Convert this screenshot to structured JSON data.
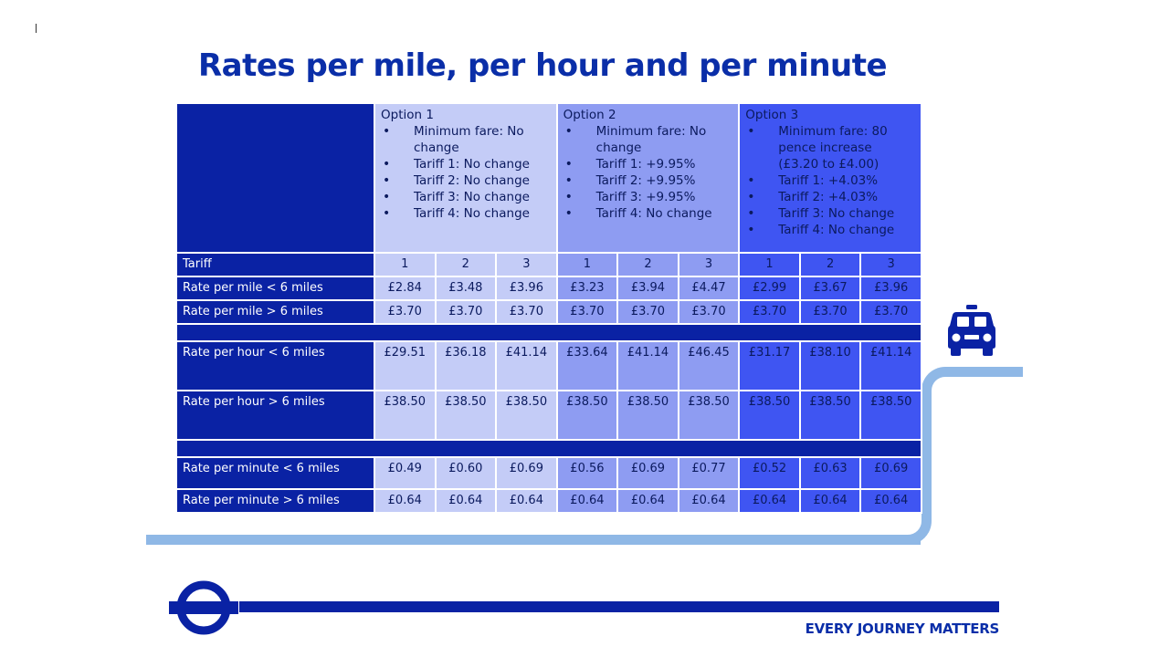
{
  "title": "Rates per mile, per hour and per minute",
  "options": [
    {
      "name": "Option 1",
      "bullets": [
        "Minimum fare: No change",
        "Tariff 1: No change",
        "Tariff 2: No change",
        "Tariff 3: No change",
        "Tariff 4: No change"
      ]
    },
    {
      "name": "Option 2",
      "bullets": [
        "Minimum fare: No change",
        "Tariff 1: +9.95%",
        "Tariff 2: +9.95%",
        "Tariff 3: +9.95%",
        "Tariff 4: No change"
      ]
    },
    {
      "name": "Option 3",
      "bullets": [
        "Minimum fare: 80 pence increase (£3.20 to £4.00)",
        "Tariff 1: +4.03%",
        "Tariff 2: +4.03%",
        "Tariff 3: No change",
        "Tariff 4: No change"
      ]
    }
  ],
  "tariff_row": {
    "label": "Tariff",
    "values": [
      "1",
      "2",
      "3",
      "1",
      "2",
      "3",
      "1",
      "2",
      "3"
    ]
  },
  "rows": [
    {
      "label": "Rate per mile < 6 miles",
      "values": [
        "£2.84",
        "£3.48",
        "£3.96",
        "£3.23",
        "£3.94",
        "£4.47",
        "£2.99",
        "£3.67",
        "£3.96"
      ]
    },
    {
      "label": "Rate per mile > 6 miles",
      "values": [
        "£3.70",
        "£3.70",
        "£3.70",
        "£3.70",
        "£3.70",
        "£3.70",
        "£3.70",
        "£3.70",
        "£3.70"
      ]
    },
    {
      "label": "Rate per hour < 6 miles",
      "values": [
        "£29.51",
        "£36.18",
        "£41.14",
        "£33.64",
        "£41.14",
        "£46.45",
        "£31.17",
        "£38.10",
        "£41.14"
      ]
    },
    {
      "label": "Rate per hour > 6 miles",
      "values": [
        "£38.50",
        "£38.50",
        "£38.50",
        "£38.50",
        "£38.50",
        "£38.50",
        "£38.50",
        "£38.50",
        "£38.50"
      ]
    },
    {
      "label": "Rate per minute < 6 miles",
      "values": [
        "£0.49",
        "£0.60",
        "£0.69",
        "£0.56",
        "£0.69",
        "£0.77",
        "£0.52",
        "£0.63",
        "£0.69"
      ]
    },
    {
      "label": "Rate per minute > 6 miles",
      "values": [
        "£0.64",
        "£0.64",
        "£0.64",
        "£0.64",
        "£0.64",
        "£0.64",
        "£0.64",
        "£0.64",
        "£0.64"
      ]
    }
  ],
  "footer": {
    "tagline": "EVERY JOURNEY MATTERS",
    "logo_icon": "roundel-icon"
  },
  "decorations": {
    "taxi_icon": "taxi-icon",
    "road_icon": "road-line"
  },
  "colors": {
    "brand_blue": "#0a22a4",
    "option1": "#c4ccf7",
    "option2": "#8e9cf2",
    "option3": "#3f55f2",
    "road": "#8fb8e6"
  }
}
